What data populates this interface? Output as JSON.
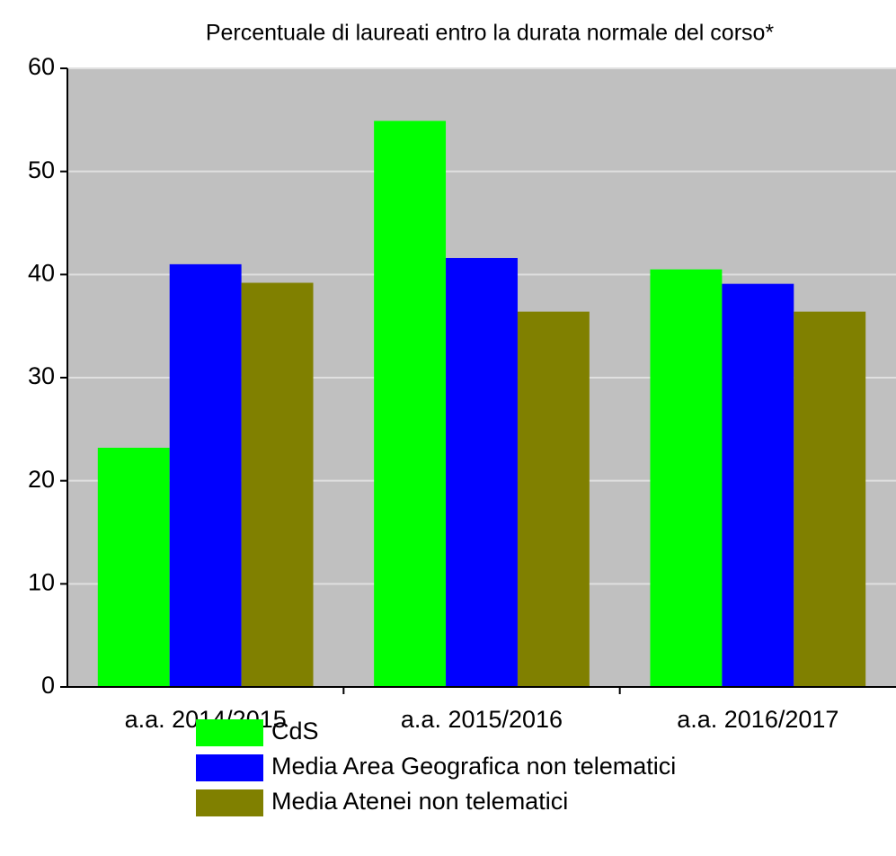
{
  "chart_data": {
    "type": "bar",
    "title": "Percentuale di laureati entro la durata normale del corso*",
    "categories": [
      "a.a. 2014/2015",
      "a.a. 2015/2016",
      "a.a. 2016/2017"
    ],
    "series": [
      {
        "name": "CdS",
        "color": "#00ff00",
        "values": [
          23.2,
          54.9,
          40.5
        ]
      },
      {
        "name": "Media Area Geografica non telematici",
        "color": "#0000ff",
        "values": [
          41.0,
          41.6,
          39.1
        ]
      },
      {
        "name": "Media Atenei non telematici",
        "color": "#808000",
        "values": [
          39.2,
          36.4,
          36.4
        ]
      }
    ],
    "ylim": [
      0,
      60
    ],
    "yticks": [
      0,
      10,
      20,
      30,
      40,
      50,
      60
    ],
    "grid": true
  }
}
